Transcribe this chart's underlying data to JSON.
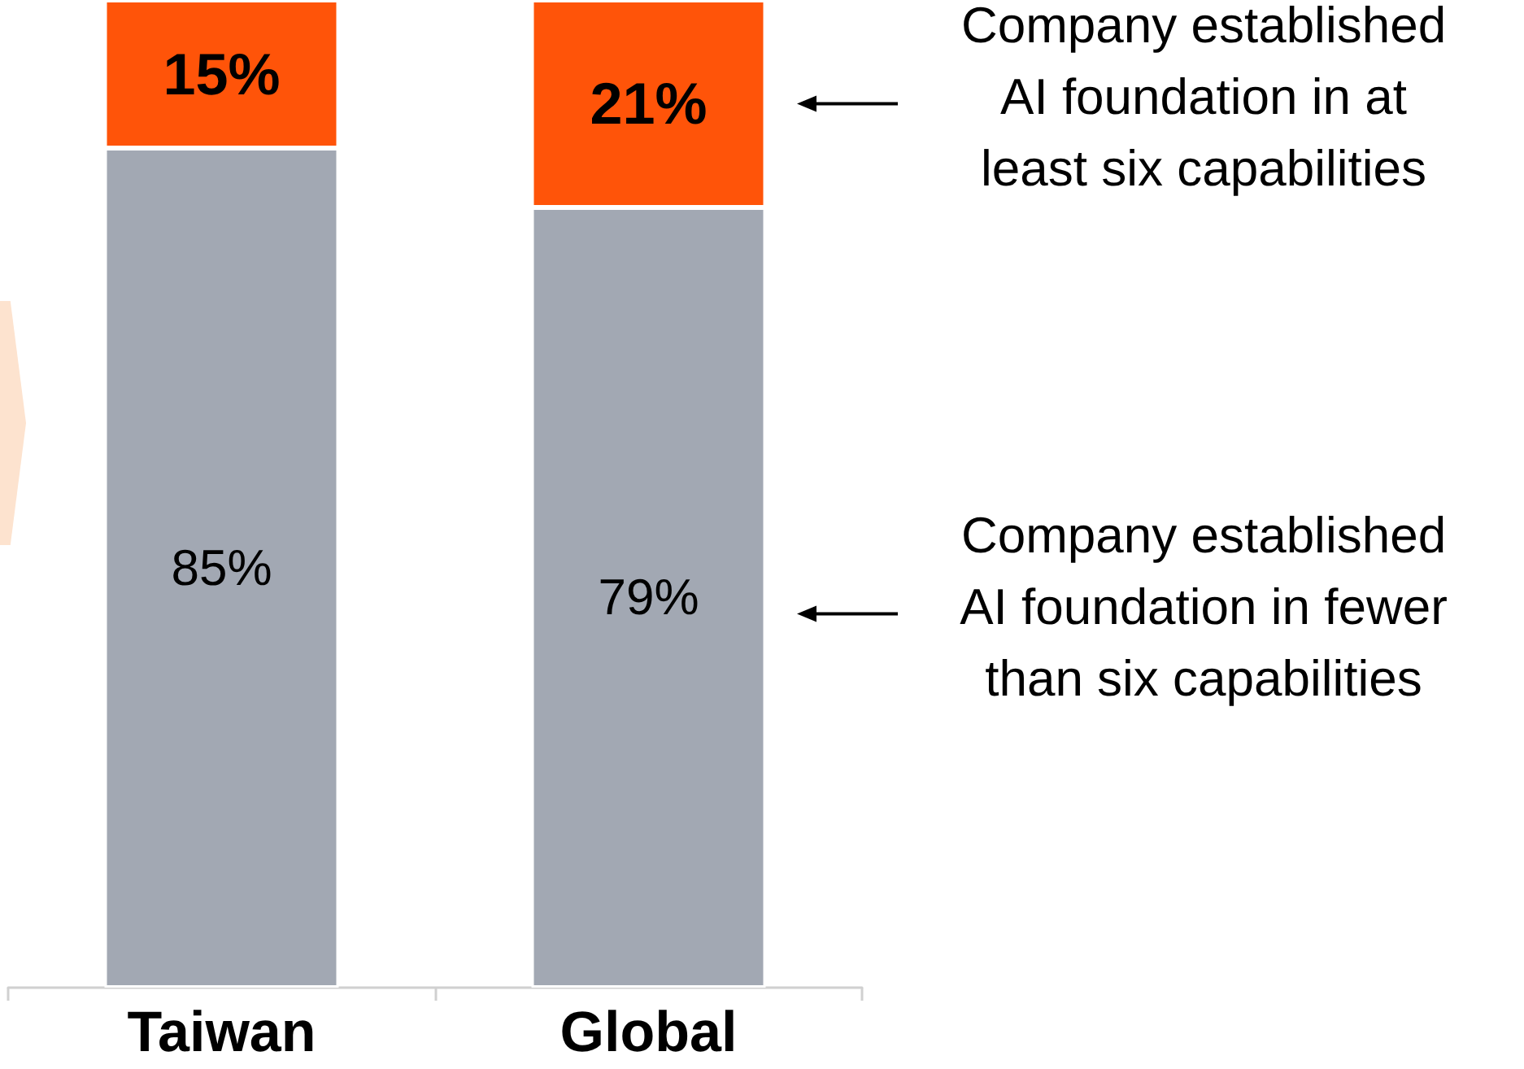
{
  "chart_data": {
    "type": "bar",
    "stacked": true,
    "categories": [
      "Taiwan",
      "Global"
    ],
    "series": [
      {
        "name": "Company established\nAI foundation in fewer\nthan six capabilities",
        "color": "#a2a8b3",
        "values": [
          85,
          79
        ],
        "value_labels": [
          "85%",
          "79%"
        ]
      },
      {
        "name": "Company established\nAI foundation in at\nleast six capabilities",
        "color": "#ff5409",
        "values": [
          15,
          21
        ],
        "value_labels": [
          "15%",
          "21%"
        ]
      }
    ],
    "legend": false,
    "tick_labels": "x"
  }
}
